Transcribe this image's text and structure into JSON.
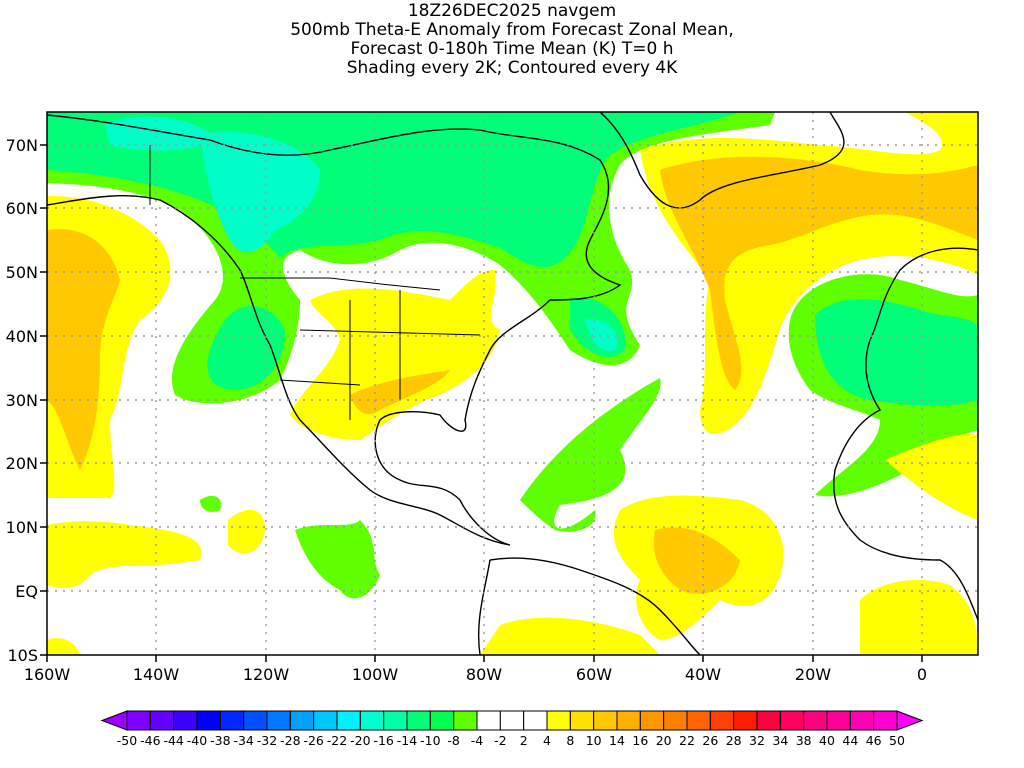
{
  "title": {
    "line1": "18Z26DEC2025 navgem",
    "line2": "500mb Theta-E Anomaly from Forecast Zonal Mean,",
    "line3": "Forecast 0-180h Time Mean (K) T=0 h",
    "line4": "Shading every 2K; Contoured every 4K"
  },
  "map": {
    "lon_range": [
      "160W",
      "10E"
    ],
    "lat_range": [
      "10S",
      "75N"
    ],
    "x_ticks": [
      "160W",
      "140W",
      "120W",
      "100W",
      "80W",
      "60W",
      "40W",
      "20W",
      "0"
    ],
    "y_ticks": [
      "70N",
      "60N",
      "50N",
      "40N",
      "30N",
      "20N",
      "10N",
      "EQ",
      "10S"
    ]
  },
  "colorbar": {
    "labels": [
      "-50",
      "-46",
      "-44",
      "-40",
      "-38",
      "-34",
      "-32",
      "-28",
      "-26",
      "-22",
      "-20",
      "-16",
      "-14",
      "-10",
      "-8",
      "-4",
      "-2",
      "2",
      "4",
      "8",
      "10",
      "14",
      "16",
      "20",
      "22",
      "26",
      "28",
      "32",
      "34",
      "38",
      "40",
      "44",
      "46",
      "50"
    ],
    "low_arrow_color": "#a000ff",
    "high_arrow_color": "#ff00ff",
    "colors": [
      "#7f00ff",
      "#6400ff",
      "#3c00ff",
      "#0000ff",
      "#0028ff",
      "#0050ff",
      "#0078ff",
      "#00a0ff",
      "#00c8ff",
      "#00f0ff",
      "#00ffd0",
      "#00ffa8",
      "#00ff78",
      "#00ff50",
      "#60ff00",
      "#ffffff",
      "#ffffff",
      "#ffffff",
      "#ffff00",
      "#ffe000",
      "#ffc800",
      "#ffb000",
      "#ff9800",
      "#ff8000",
      "#ff6400",
      "#ff4000",
      "#ff1e00",
      "#ff0040",
      "#ff0060",
      "#ff0080",
      "#ff0098",
      "#ff00b4",
      "#ff00d0"
    ]
  },
  "shading_colors": {
    "green_light": "#60ff00",
    "green": "#00ff78",
    "teal": "#00ffc8",
    "yellow": "#ffff00",
    "gold": "#ffe000",
    "orange": "#ffc800"
  }
}
